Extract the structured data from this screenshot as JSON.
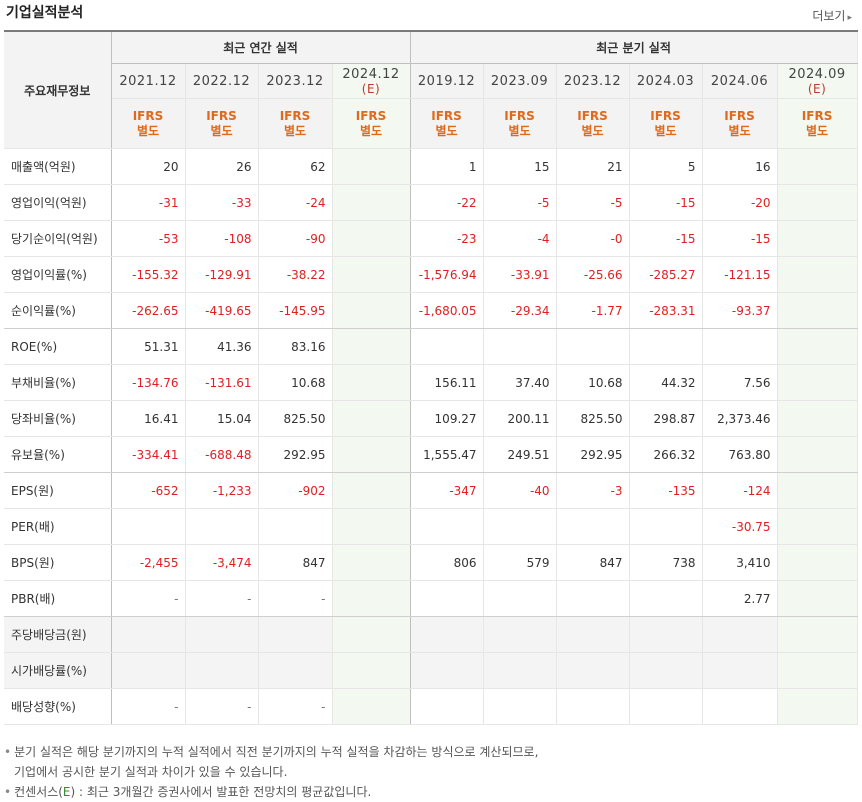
{
  "header": {
    "title": "기업실적분석",
    "more_label": "더보기"
  },
  "table": {
    "row_header_label": "주요재무정보",
    "groups": [
      {
        "label": "최근 연간 실적"
      },
      {
        "label": "최근 분기 실적"
      }
    ],
    "periods": [
      {
        "label": "2021.12",
        "est": ""
      },
      {
        "label": "2022.12",
        "est": ""
      },
      {
        "label": "2023.12",
        "est": ""
      },
      {
        "label": "2024.12",
        "est": "(E)"
      },
      {
        "label": "2019.12",
        "est": ""
      },
      {
        "label": "2023.09",
        "est": ""
      },
      {
        "label": "2023.12",
        "est": ""
      },
      {
        "label": "2024.03",
        "est": ""
      },
      {
        "label": "2024.06",
        "est": ""
      },
      {
        "label": "2024.09",
        "est": "(E)"
      }
    ],
    "ifrs": [
      "IFRS",
      "별도"
    ],
    "rows": [
      {
        "label": "매출액(억원)",
        "values": [
          "20",
          "26",
          "62",
          "",
          "1",
          "15",
          "21",
          "5",
          "16",
          ""
        ]
      },
      {
        "label": "영업이익(억원)",
        "values": [
          "-31",
          "-33",
          "-24",
          "",
          "-22",
          "-5",
          "-5",
          "-15",
          "-20",
          ""
        ]
      },
      {
        "label": "당기순이익(억원)",
        "values": [
          "-53",
          "-108",
          "-90",
          "",
          "-23",
          "-4",
          "-0",
          "-15",
          "-15",
          ""
        ]
      },
      {
        "label": "영업이익률(%)",
        "values": [
          "-155.32",
          "-129.91",
          "-38.22",
          "",
          "-1,576.94",
          "-33.91",
          "-25.66",
          "-285.27",
          "-121.15",
          ""
        ]
      },
      {
        "label": "순이익률(%)",
        "values": [
          "-262.65",
          "-419.65",
          "-145.95",
          "",
          "-1,680.05",
          "-29.34",
          "-1.77",
          "-283.31",
          "-93.37",
          ""
        ]
      },
      {
        "label": "ROE(%)",
        "values": [
          "51.31",
          "41.36",
          "83.16",
          "",
          "",
          "",
          "",
          "",
          "",
          ""
        ]
      },
      {
        "label": "부채비율(%)",
        "values": [
          "-134.76",
          "-131.61",
          "10.68",
          "",
          "156.11",
          "37.40",
          "10.68",
          "44.32",
          "7.56",
          ""
        ]
      },
      {
        "label": "당좌비율(%)",
        "values": [
          "16.41",
          "15.04",
          "825.50",
          "",
          "109.27",
          "200.11",
          "825.50",
          "298.87",
          "2,373.46",
          ""
        ]
      },
      {
        "label": "유보율(%)",
        "values": [
          "-334.41",
          "-688.48",
          "292.95",
          "",
          "1,555.47",
          "249.51",
          "292.95",
          "266.32",
          "763.80",
          ""
        ]
      },
      {
        "label": "EPS(원)",
        "values": [
          "-652",
          "-1,233",
          "-902",
          "",
          "-347",
          "-40",
          "-3",
          "-135",
          "-124",
          ""
        ]
      },
      {
        "label": "PER(배)",
        "values": [
          "",
          "",
          "",
          "",
          "",
          "",
          "",
          "",
          "-30.75",
          ""
        ]
      },
      {
        "label": "BPS(원)",
        "values": [
          "-2,455",
          "-3,474",
          "847",
          "",
          "806",
          "579",
          "847",
          "738",
          "3,410",
          ""
        ]
      },
      {
        "label": "PBR(배)",
        "values": [
          "-",
          "-",
          "-",
          "",
          "",
          "",
          "",
          "",
          "2.77",
          ""
        ]
      },
      {
        "label": "주당배당금(원)",
        "values": [
          "",
          "",
          "",
          "",
          "",
          "",
          "",
          "",
          "",
          ""
        ],
        "shaded": true
      },
      {
        "label": "시가배당률(%)",
        "values": [
          "",
          "",
          "",
          "",
          "",
          "",
          "",
          "",
          "",
          ""
        ],
        "shaded": true
      },
      {
        "label": "배당성향(%)",
        "values": [
          "-",
          "-",
          "-",
          "",
          "",
          "",
          "",
          "",
          "",
          ""
        ]
      }
    ]
  },
  "notes": {
    "line1": "분기 실적은 해당 분기까지의 누적 실적에서 직전 분기까지의 누적 실적을 차감하는 방식으로 계산되므로,",
    "line2": "기업에서 공시한 분기 실적과 차이가 있을 수 있습니다.",
    "line3_prefix": "컨센서스(",
    "line3_e": "E",
    "line3_suffix": ") : 최근 3개월간 증권사에서 발표한 전망치의 평균값입니다."
  },
  "colors": {
    "negative": "#e02020",
    "ifrs": "#e06a1a",
    "estimate_bg": "#f3f9f1",
    "estimate_text": "#2a8f2a"
  }
}
